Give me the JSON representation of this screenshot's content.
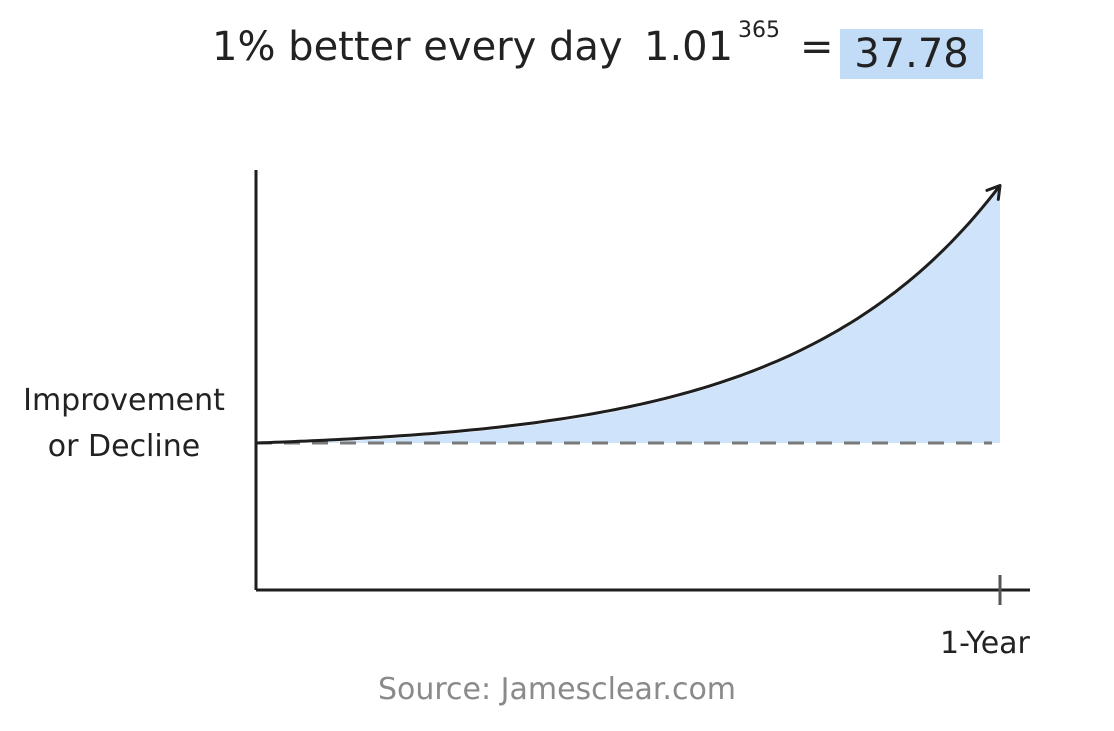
{
  "header": {
    "title": "1% better every day",
    "formula_base": "1.01",
    "formula_exponent": "365",
    "formula_equals": "=",
    "formula_result": "37.78"
  },
  "source": "Source: Jamesclear.com",
  "colors": {
    "fill": "#cfe3fa",
    "curve": "#1e1e1e",
    "baseline": "#7a7a7a",
    "result_highlight": "#c2dcf7"
  },
  "chart_data": {
    "type": "area",
    "xlabel": "1-Year",
    "ylabel": "Improvement\nor Decline",
    "ylabel_lines": [
      "Improvement",
      "or Decline"
    ],
    "x": [
      0,
      36.5,
      73,
      109.5,
      146,
      182.5,
      219,
      255.5,
      292,
      328.5,
      365
    ],
    "values": [
      1.0,
      1.44,
      2.07,
      2.97,
      4.28,
      6.15,
      8.83,
      12.69,
      18.22,
      26.17,
      37.78
    ],
    "baseline": 1.0,
    "xlim": [
      0,
      365
    ],
    "ylim": [
      -20,
      40
    ],
    "grid": false,
    "legend": "none",
    "arrow_at_end": true
  }
}
